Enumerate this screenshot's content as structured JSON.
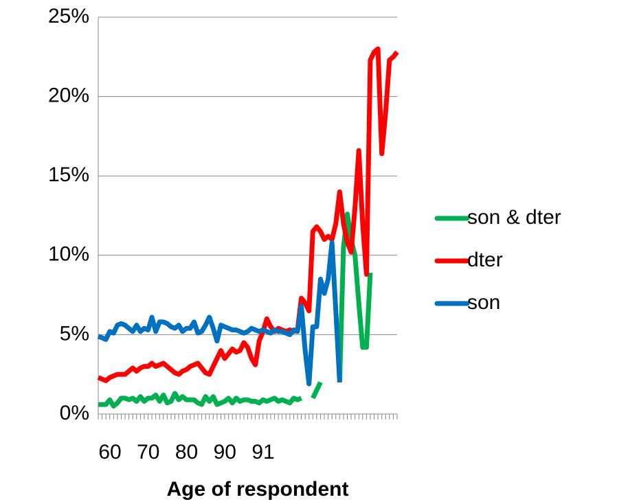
{
  "chart_data": {
    "type": "line",
    "x_label": "Age of respondent",
    "categories": [
      60,
      null,
      null,
      null,
      null,
      null,
      null,
      null,
      null,
      null,
      70,
      null,
      null,
      null,
      null,
      null,
      null,
      null,
      null,
      null,
      80,
      null,
      null,
      null,
      null,
      null,
      null,
      null,
      null,
      null,
      90,
      null,
      null,
      null,
      null,
      null,
      null,
      null,
      null,
      null,
      91,
      null,
      null,
      null,
      null,
      null,
      null,
      null,
      null,
      null,
      null,
      null,
      null,
      null,
      null,
      null,
      null,
      null,
      null,
      null,
      null,
      null,
      null,
      null,
      null,
      null,
      null,
      null,
      null,
      null,
      null,
      null,
      null,
      null,
      null,
      null,
      null,
      null,
      null
    ],
    "series": [
      {
        "name": "son & dter",
        "color": "#00b050",
        "values": [
          0.6,
          0.6,
          0.6,
          0.9,
          0.5,
          0.7,
          1.0,
          1.0,
          0.9,
          1.0,
          0.8,
          1.1,
          0.8,
          1.0,
          1.0,
          1.2,
          0.8,
          1.2,
          0.7,
          0.8,
          1.3,
          0.9,
          1.1,
          0.9,
          0.9,
          0.9,
          0.7,
          0.6,
          1.1,
          0.8,
          1.1,
          0.6,
          0.7,
          0.8,
          1.0,
          0.7,
          1.0,
          0.8,
          0.9,
          0.9,
          0.8,
          0.8,
          0.7,
          0.9,
          0.8,
          0.9,
          1.0,
          0.8,
          0.9,
          0.8,
          0.7,
          1.0,
          0.9,
          1.0,
          null,
          null,
          1.0,
          1.5,
          2.0,
          null,
          null,
          null,
          null,
          2.0,
          10.5,
          12.6,
          11,
          10,
          7,
          4.2,
          4.2,
          8.9,
          null,
          null,
          null,
          null,
          null,
          null,
          null
        ]
      },
      {
        "name": "dter",
        "color": "#ff0000",
        "values": [
          2.3,
          2.2,
          2.1,
          2.3,
          2.4,
          2.5,
          2.5,
          2.5,
          2.7,
          2.9,
          2.7,
          2.9,
          3.0,
          3.0,
          3.2,
          3.0,
          3.1,
          3.2,
          3.0,
          2.8,
          2.6,
          2.5,
          2.7,
          2.8,
          3.0,
          3.1,
          3.2,
          2.9,
          2.6,
          2.5,
          3.0,
          3.5,
          4.0,
          3.5,
          3.8,
          4.1,
          3.9,
          4.0,
          4.5,
          4.2,
          3.5,
          3.1,
          4.6,
          5.2,
          6.0,
          5.5,
          5.2,
          5.4,
          5.3,
          5.2,
          5.3,
          5.2,
          5.3,
          7.3,
          7.0,
          6.5,
          11.5,
          11.8,
          11.5,
          11.0,
          11.2,
          11.0,
          12,
          14.0,
          12,
          10.8,
          10.2,
          13,
          16.6,
          12,
          8.8,
          22.3,
          22.8,
          23.0,
          16.4,
          19,
          22.3,
          22.5,
          22.8
        ]
      },
      {
        "name": "son",
        "color": "#0070c0",
        "values": [
          4.9,
          4.8,
          4.7,
          5.2,
          5.1,
          5.6,
          5.7,
          5.6,
          5.4,
          5.2,
          5.6,
          5.2,
          5.4,
          5.3,
          6.1,
          5.2,
          5.8,
          5.8,
          5.7,
          5.5,
          5.4,
          5.6,
          5.2,
          5.4,
          5.4,
          5.8,
          5.1,
          5.2,
          5.6,
          6.1,
          5.4,
          4.6,
          5.6,
          5.5,
          5.4,
          5.3,
          5.3,
          5.2,
          5.1,
          5.2,
          5.4,
          5.3,
          5.2,
          5.3,
          5.2,
          5.1,
          5.3,
          5.2,
          5.2,
          5.1,
          5.0,
          5.3,
          5.2,
          6.8,
          4.0,
          1.9,
          5.5,
          5.5,
          8.5,
          7.6,
          8.5,
          10.8,
          6.5,
          2.0,
          null,
          null,
          null,
          null,
          null,
          null,
          null,
          null,
          null,
          null,
          null,
          null,
          null,
          null,
          null
        ]
      }
    ],
    "ylim": [
      0,
      25
    ],
    "yticks": [
      {
        "value": 0,
        "label": "0%"
      },
      {
        "value": 5,
        "label": "5%"
      },
      {
        "value": 10,
        "label": "10%"
      },
      {
        "value": 15,
        "label": "15%"
      },
      {
        "value": 20,
        "label": "20%"
      },
      {
        "value": 25,
        "label": "25%"
      }
    ],
    "grid": true,
    "legend": "right"
  }
}
